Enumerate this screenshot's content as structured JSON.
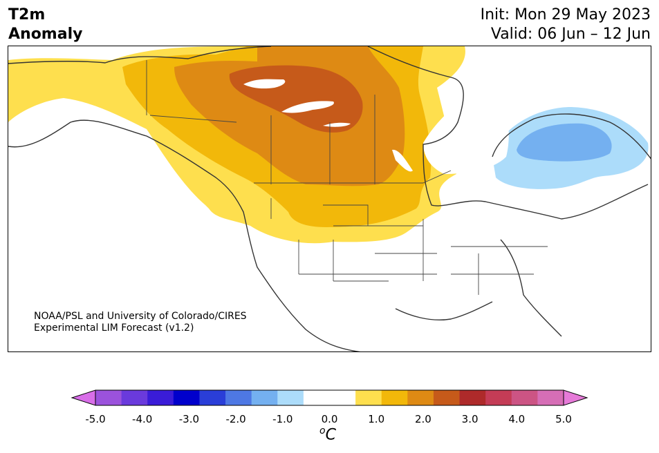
{
  "header": {
    "variable_line1": "T2m",
    "variable_line2": "Anomaly",
    "init": "Init: Mon 29 May 2023",
    "valid": "Valid: 06 Jun – 12 Jun"
  },
  "credit": {
    "line1": "NOAA/PSL and University of Colorado/CIRES",
    "line2": "Experimental LIM Forecast (v1.2)"
  },
  "colorbar": {
    "unit_base": "C",
    "unit_super": "o",
    "colors": [
      "#d86ee8",
      "#9b52dc",
      "#6a3adc",
      "#3a1cd8",
      "#0000cc",
      "#2a3ed8",
      "#4e78e4",
      "#74b0f0",
      "#acdcfa",
      "#ffffff",
      "#ffffff",
      "#fedf4e",
      "#f2b80a",
      "#de8a14",
      "#c65a1a",
      "#ae2a2a",
      "#c43c56",
      "#cc5484",
      "#d66eb6",
      "#e67ad8"
    ],
    "tick_labels": [
      "-5.0",
      "-4.0",
      "-3.0",
      "-2.0",
      "-1.0",
      "0.0",
      "1.0",
      "2.0",
      "3.0",
      "4.0",
      "5.0"
    ]
  }
}
